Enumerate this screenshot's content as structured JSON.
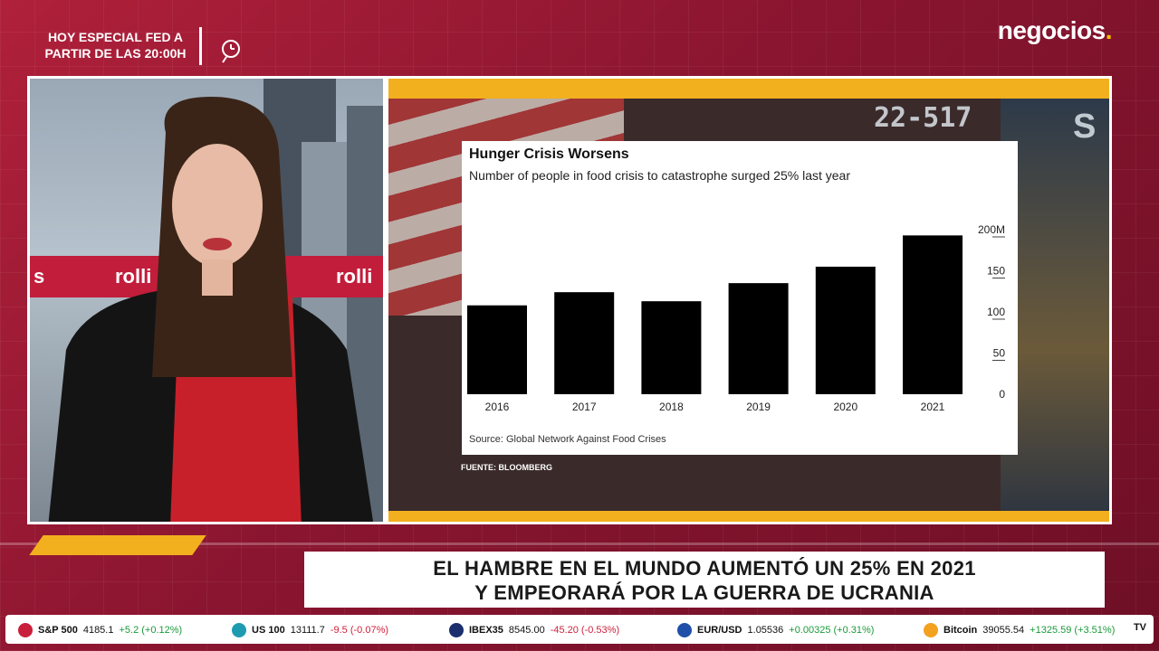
{
  "header": {
    "promo_text": "HOY ESPECIAL FED A PARTIR DE LAS 20:00H",
    "brand": "negocios",
    "brand_dot": "."
  },
  "presenter_panel": {
    "studio_text_left": "s",
    "studio_text_right": "rolli",
    "studio_text_mid": "rolli"
  },
  "chart_panel": {
    "bg_number": "22-517",
    "bg_letter": "S",
    "caption": "FUENTE: BLOOMBERG"
  },
  "chart_data": {
    "type": "bar",
    "title": "Hunger Crisis Worsens",
    "subtitle": "Number of people in food crisis to catastrophe surged 25% last year",
    "source": "Source: Global Network Against Food Crises",
    "categories": [
      "2016",
      "2017",
      "2018",
      "2019",
      "2020",
      "2021"
    ],
    "values": [
      108,
      124,
      113,
      135,
      155,
      193
    ],
    "ylim": [
      0,
      200
    ],
    "yticks": [
      {
        "value": 200,
        "label": "200M"
      },
      {
        "value": 150,
        "label": "150"
      },
      {
        "value": 100,
        "label": "100"
      },
      {
        "value": 50,
        "label": "50"
      },
      {
        "value": 0,
        "label": "0"
      }
    ],
    "y_axis_side": "right",
    "grid": false,
    "bar_color": "#000000"
  },
  "headline": {
    "line1": "EL HAMBRE EN EL MUNDO AUMENTÓ UN 25% EN 2021",
    "line2": "Y EMPEORARÁ POR LA GUERRA DE UCRANIA"
  },
  "ticker": {
    "items": [
      {
        "name": "S&P 500",
        "value": "4185.1",
        "change": "+5.2 (+0.12%)",
        "trend": "up",
        "icon_color": "#c8203c"
      },
      {
        "name": "US 100",
        "value": "13111.7",
        "change": "-9.5 (-0.07%)",
        "trend": "down",
        "icon_color": "#1e9bb0"
      },
      {
        "name": "IBEX35",
        "value": "8545.00",
        "change": "-45.20 (-0.53%)",
        "trend": "down",
        "icon_color": "#1b2f6e"
      },
      {
        "name": "EUR/USD",
        "value": "1.05536",
        "change": "+0.00325 (+0.31%)",
        "trend": "up",
        "icon_color": "#1f4fa8"
      },
      {
        "name": "Bitcoin",
        "value": "39055.54",
        "change": "+1325.59 (+3.51%)",
        "trend": "up",
        "icon_color": "#f2a21e"
      }
    ],
    "end_logo": "TV"
  }
}
